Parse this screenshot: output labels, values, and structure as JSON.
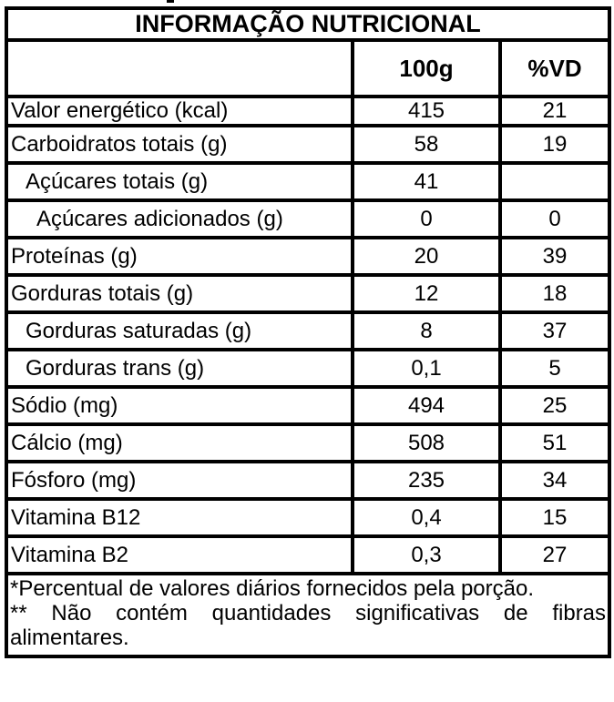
{
  "colors": {
    "border": "#000000",
    "background": "#ffffff",
    "text": "#000000"
  },
  "table": {
    "title": "INFORMAÇÃO NUTRICIONAL",
    "columns": {
      "amount": "100g",
      "dv": "%VD"
    },
    "rows": [
      {
        "label": "Valor energético (kcal)",
        "amount": "415",
        "dv": "21",
        "indent": 0
      },
      {
        "label": "Carboidratos totais (g)",
        "amount": "58",
        "dv": "19",
        "indent": 0
      },
      {
        "label": "Açúcares totais (g)",
        "amount": "41",
        "dv": "",
        "indent": 1
      },
      {
        "label": "Açúcares adicionados (g)",
        "amount": "0",
        "dv": "0",
        "indent": 2
      },
      {
        "label": "Proteínas (g)",
        "amount": "20",
        "dv": "39",
        "indent": 0
      },
      {
        "label": "Gorduras totais (g)",
        "amount": "12",
        "dv": "18",
        "indent": 0
      },
      {
        "label": "Gorduras saturadas (g)",
        "amount": "8",
        "dv": "37",
        "indent": 1
      },
      {
        "label": "Gorduras trans (g)",
        "amount": "0,1",
        "dv": "5",
        "indent": 1
      },
      {
        "label": "Sódio (mg)",
        "amount": "494",
        "dv": "25",
        "indent": 0
      },
      {
        "label": "Cálcio (mg)",
        "amount": "508",
        "dv": "51",
        "indent": 0
      },
      {
        "label": "Fósforo (mg)",
        "amount": "235",
        "dv": "34",
        "indent": 0
      },
      {
        "label": "Vitamina B12",
        "amount": "0,4",
        "dv": "15",
        "indent": 0
      },
      {
        "label": "Vitamina B2",
        "amount": "0,3",
        "dv": "27",
        "indent": 0
      }
    ],
    "footnotes": [
      "*Percentual de valores diários fornecidos pela porção.",
      "** Não contém quantidades significativas de fibras alimentares."
    ]
  }
}
